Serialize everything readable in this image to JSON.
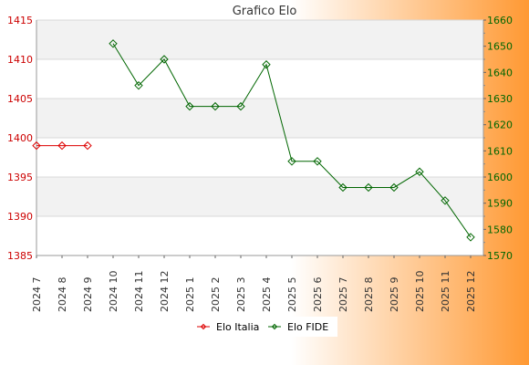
{
  "chart_data": {
    "type": "line",
    "title": "Grafico Elo",
    "categories": [
      "2024 7",
      "2024 8",
      "2024 9",
      "2024 10",
      "2024 11",
      "2024 12",
      "2025 1",
      "2025 2",
      "2025 3",
      "2025 4",
      "2025 5",
      "2025 6",
      "2025 7",
      "2025 8",
      "2025 9",
      "2025 10",
      "2025 11",
      "2025 12"
    ],
    "y_left": {
      "range": [
        1385,
        1415
      ],
      "ticks": [
        1385,
        1390,
        1395,
        1400,
        1405,
        1410,
        1415
      ],
      "color": "#cc0000"
    },
    "y_right": {
      "range": [
        1570,
        1660
      ],
      "ticks": [
        1570,
        1580,
        1590,
        1600,
        1610,
        1620,
        1630,
        1640,
        1650,
        1660
      ],
      "color": "#006600"
    },
    "series": [
      {
        "name": "Elo Italia",
        "axis": "left",
        "color": "#dd0000",
        "values": [
          1399,
          1399,
          1399,
          null,
          null,
          null,
          null,
          null,
          null,
          null,
          null,
          null,
          null,
          null,
          null,
          null,
          null,
          null
        ]
      },
      {
        "name": "Elo FIDE",
        "axis": "right",
        "color": "#006600",
        "values": [
          null,
          null,
          null,
          1651,
          1635,
          1645,
          1627,
          1627,
          1627,
          1643,
          1606,
          1606,
          1596,
          1596,
          1596,
          1602,
          1591,
          1577
        ]
      }
    ],
    "grid": true,
    "legend_position": "bottom"
  },
  "colors": {
    "background_start": "#ffffff",
    "background_end": "#ff9933",
    "band": "#f2f2f2"
  }
}
